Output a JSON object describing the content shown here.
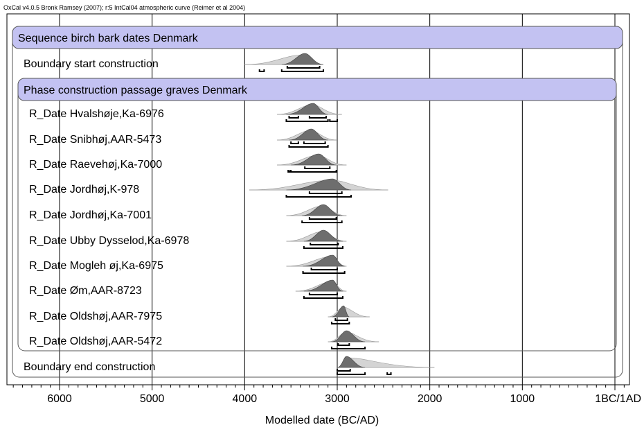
{
  "header_note": "OxCal v4.0.5 Bronk Ramsey (2007); r:5 IntCal04 atmospheric curve (Reimer et al 2004)",
  "chart_data": {
    "type": "chronological-model",
    "xlabel": "Modelled date (BC/AD)",
    "ticks": [
      {
        "value": 6000,
        "label": "6000"
      },
      {
        "value": 5000,
        "label": "5000"
      },
      {
        "value": 4000,
        "label": "4000"
      },
      {
        "value": 3000,
        "label": "3000"
      },
      {
        "value": 2000,
        "label": "2000"
      },
      {
        "value": 1000,
        "label": "1000"
      },
      {
        "value": 0,
        "label": "1BC/1AD"
      }
    ],
    "xlim_bc": [
      6550,
      -150
    ],
    "grid": true,
    "sequence_label": "Sequence birch bark dates Denmark",
    "phase_label": "Phase construction passage graves Denmark",
    "rows": [
      {
        "label": "Boundary start construction",
        "group": "sequence",
        "prior_span": [
          4000,
          3150
        ],
        "peak": 3350,
        "ranges68": [
          [
            3540,
            3190
          ]
        ],
        "ranges95": [
          [
            3600,
            3150
          ],
          [
            3840,
            3790
          ]
        ]
      },
      {
        "label": "R_Date Hvalshøje,Ka-6976",
        "group": "phase",
        "prior_span": [
          3650,
          2950
        ],
        "peak": 3260,
        "ranges68": [
          [
            3520,
            3420
          ],
          [
            3300,
            3120
          ]
        ],
        "ranges95": [
          [
            3550,
            3100
          ],
          [
            3080,
            3000
          ]
        ]
      },
      {
        "label": "R_Date Snibhøj,AAR-5473",
        "group": "phase",
        "prior_span": [
          3650,
          3000
        ],
        "peak": 3280,
        "ranges68": [
          [
            3500,
            3420
          ],
          [
            3360,
            3130
          ]
        ],
        "ranges95": [
          [
            3520,
            3100
          ]
        ]
      },
      {
        "label": "R_Date Raevehøj,Ka-7000",
        "group": "phase",
        "prior_span": [
          3650,
          2900
        ],
        "peak": 3200,
        "ranges68": [
          [
            3350,
            3080
          ]
        ],
        "ranges95": [
          [
            3500,
            3010
          ],
          [
            3530,
            3510
          ]
        ]
      },
      {
        "label": "R_Date Jordhøj,K-978",
        "group": "phase",
        "prior_span": [
          3950,
          2450
        ],
        "peak": 3050,
        "ranges68": [
          [
            3300,
            2950
          ]
        ],
        "ranges95": [
          [
            3550,
            2850
          ]
        ]
      },
      {
        "label": "R_Date Jordhøj,Ka-7001",
        "group": "phase",
        "prior_span": [
          3550,
          2900
        ],
        "peak": 3150,
        "ranges68": [
          [
            3300,
            3010
          ]
        ],
        "ranges95": [
          [
            3380,
            2950
          ]
        ]
      },
      {
        "label": "R_Date Ubby Dysselod,Ka-6978",
        "group": "phase",
        "prior_span": [
          3550,
          2900
        ],
        "peak": 3150,
        "ranges68": [
          [
            3290,
            2990
          ]
        ],
        "ranges95": [
          [
            3360,
            2940
          ]
        ]
      },
      {
        "label": "R_Date Mogleh øj,Ka-6975",
        "group": "phase",
        "prior_span": [
          3550,
          2900
        ],
        "peak": 3050,
        "ranges68": [
          [
            3280,
            3000
          ]
        ],
        "ranges95": [
          [
            3370,
            2920
          ]
        ]
      },
      {
        "label": "R_Date Øm,AAR-8723",
        "group": "phase",
        "prior_span": [
          3450,
          2900
        ],
        "peak": 3050,
        "ranges68": [
          [
            3300,
            3000
          ]
        ],
        "ranges95": [
          [
            3360,
            2940
          ]
        ]
      },
      {
        "label": "R_Date Oldshøj,AAR-7975",
        "group": "phase",
        "prior_span": [
          3100,
          2650
        ],
        "peak": 2930,
        "ranges68": [
          [
            3020,
            2890
          ]
        ],
        "ranges95": [
          [
            3060,
            2870
          ]
        ]
      },
      {
        "label": "R_Date Oldshøj,AAR-5472",
        "group": "phase",
        "prior_span": [
          3100,
          2550
        ],
        "peak": 2900,
        "ranges68": [
          [
            2990,
            2870
          ]
        ],
        "ranges95": [
          [
            3060,
            2700
          ]
        ]
      },
      {
        "label": "Boundary end construction",
        "group": "sequence",
        "prior_span": [
          3000,
          1950
        ],
        "peak": 2900,
        "ranges68": [
          [
            3000,
            2860
          ]
        ],
        "ranges95": [
          [
            3000,
            2700
          ],
          [
            2460,
            2420
          ]
        ]
      }
    ]
  }
}
